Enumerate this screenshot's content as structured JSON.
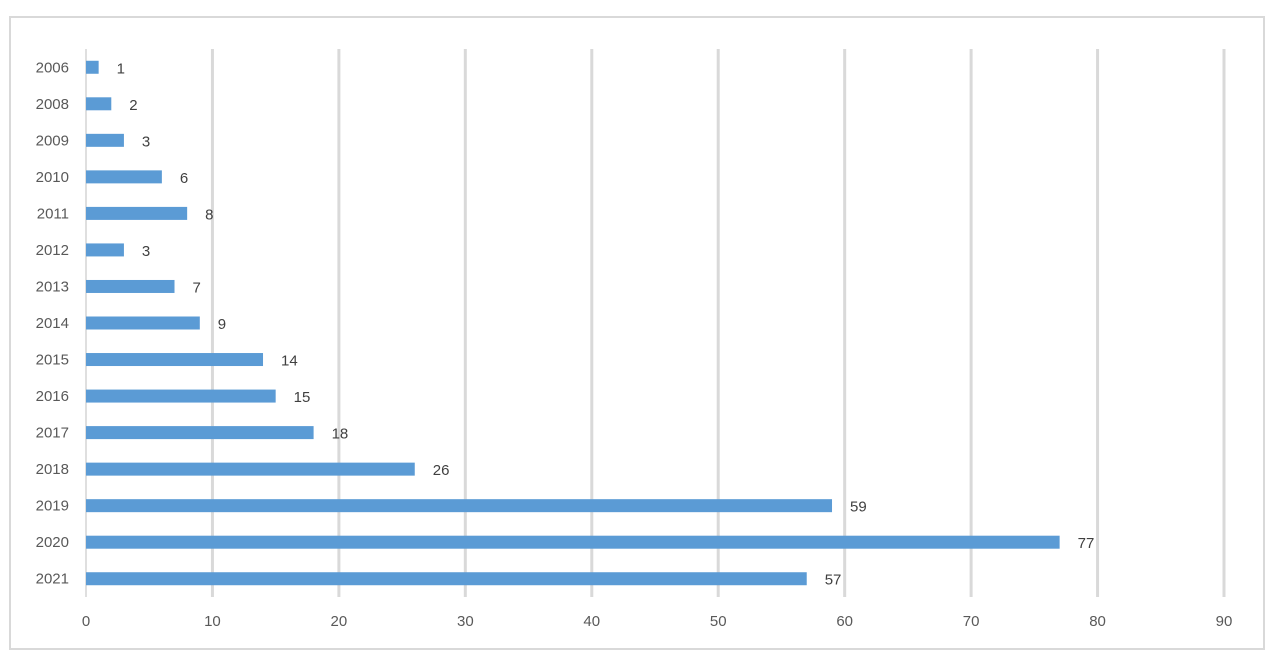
{
  "chart_data": {
    "type": "bar",
    "orientation": "horizontal",
    "title": "",
    "xlabel": "",
    "ylabel": "",
    "categories": [
      "2006",
      "2008",
      "2009",
      "2010",
      "2011",
      "2012",
      "2013",
      "2014",
      "2015",
      "2016",
      "2017",
      "2018",
      "2019",
      "2020",
      "2021"
    ],
    "values": [
      1,
      2,
      3,
      6,
      8,
      3,
      7,
      9,
      14,
      15,
      18,
      26,
      59,
      77,
      57
    ],
    "data_labels": [
      "1",
      "2",
      "3",
      "6",
      "8",
      "3",
      "7",
      "9",
      "14",
      "15",
      "18",
      "26",
      "59",
      "77",
      "57"
    ],
    "xlim": [
      0,
      90
    ],
    "x_ticks": [
      "0",
      "10",
      "20",
      "30",
      "40",
      "50",
      "60",
      "70",
      "80",
      "90"
    ],
    "grid": "vertical",
    "legend": "none",
    "bar_color": "#5b9bd5",
    "gridline_color": "#d9d9d9",
    "border_color": "#d9d9d9"
  }
}
